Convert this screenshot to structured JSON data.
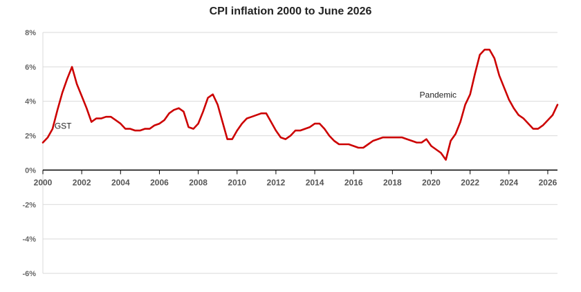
{
  "chart_data": {
    "type": "line",
    "title": "CPI inflation 2000 to June 2026",
    "xlabel": "",
    "ylabel": "",
    "xlim": [
      2000,
      2026.5
    ],
    "ylim": [
      -6,
      8
    ],
    "y_ticks": [
      "8%",
      "6%",
      "4%",
      "2%",
      "0%",
      "-2%",
      "-4%",
      "-6%"
    ],
    "y_tick_values": [
      8,
      6,
      4,
      2,
      0,
      -2,
      -4,
      -6
    ],
    "x_ticks": [
      "2000",
      "2002",
      "2004",
      "2006",
      "2008",
      "2010",
      "2012",
      "2014",
      "2016",
      "2018",
      "2020",
      "2022",
      "2024",
      "2026"
    ],
    "x_tick_values": [
      2000,
      2002,
      2004,
      2006,
      2008,
      2010,
      2012,
      2014,
      2016,
      2018,
      2020,
      2022,
      2024,
      2026
    ],
    "grid": "horizontal",
    "line_color": "#cc0000",
    "annotations": [
      {
        "text": "GST",
        "x": 2000.6,
        "y": 2.4
      },
      {
        "text": "Pandemic",
        "x": 2019.4,
        "y": 4.2
      }
    ],
    "series": [
      {
        "x": [
          2000.0,
          2000.25,
          2000.5,
          2000.75,
          2001.0,
          2001.25,
          2001.5,
          2001.75,
          2002.0,
          2002.25,
          2002.5,
          2002.75,
          2003.0,
          2003.25,
          2003.5,
          2003.75,
          2004.0,
          2004.25,
          2004.5,
          2004.75,
          2005.0,
          2005.25,
          2005.5,
          2005.75,
          2006.0,
          2006.25,
          2006.5,
          2006.75,
          2007.0,
          2007.25,
          2007.5,
          2007.75,
          2008.0,
          2008.25,
          2008.5,
          2008.75,
          2009.0,
          2009.25,
          2009.5,
          2009.75,
          2010.0,
          2010.25,
          2010.5,
          2010.75,
          2011.0,
          2011.25,
          2011.5,
          2011.75,
          2012.0,
          2012.25,
          2012.5,
          2012.75,
          2013.0,
          2013.25,
          2013.5,
          2013.75,
          2014.0,
          2014.25,
          2014.5,
          2014.75,
          2015.0,
          2015.25,
          2015.5,
          2015.75,
          2016.0,
          2016.25,
          2016.5,
          2016.75,
          2017.0,
          2017.25,
          2017.5,
          2017.75,
          2018.0,
          2018.25,
          2018.5,
          2018.75,
          2019.0,
          2019.25,
          2019.5,
          2019.75,
          2020.0,
          2020.25,
          2020.5,
          2020.75,
          2021.0,
          2021.25,
          2021.5,
          2021.75,
          2022.0,
          2022.25,
          2022.5,
          2022.75,
          2023.0,
          2023.25,
          2023.5,
          2023.75,
          2024.0,
          2024.25,
          2024.5,
          2024.75,
          2025.0,
          2025.25,
          2025.5,
          2025.75,
          2026.0,
          2026.25,
          2026.5
        ],
        "values": [
          1.6,
          1.9,
          2.4,
          3.5,
          4.5,
          5.3,
          6.0,
          5.0,
          4.3,
          3.6,
          2.8,
          3.0,
          3.0,
          3.1,
          3.1,
          2.9,
          2.7,
          2.4,
          2.4,
          2.3,
          2.3,
          2.4,
          2.4,
          2.6,
          2.7,
          2.9,
          3.3,
          3.5,
          3.6,
          3.4,
          2.5,
          2.4,
          2.7,
          3.4,
          4.2,
          4.4,
          3.8,
          2.8,
          1.8,
          1.8,
          2.3,
          2.7,
          3.0,
          3.1,
          3.2,
          3.3,
          3.3,
          2.8,
          2.3,
          1.9,
          1.8,
          2.0,
          2.3,
          2.3,
          2.4,
          2.5,
          2.7,
          2.7,
          2.4,
          2.0,
          1.7,
          1.5,
          1.5,
          1.5,
          1.4,
          1.3,
          1.3,
          1.5,
          1.7,
          1.8,
          1.9,
          1.9,
          1.9,
          1.9,
          1.9,
          1.8,
          1.7,
          1.6,
          1.6,
          1.8,
          1.4,
          1.2,
          1.0,
          0.6,
          1.7,
          2.1,
          2.8,
          3.8,
          4.4,
          5.6,
          6.7,
          7.0,
          7.0,
          6.5,
          5.5,
          4.8,
          4.1,
          3.6,
          3.2,
          3.0,
          2.7,
          2.4,
          2.4,
          2.6,
          2.9,
          3.2,
          3.8
        ]
      }
    ]
  }
}
